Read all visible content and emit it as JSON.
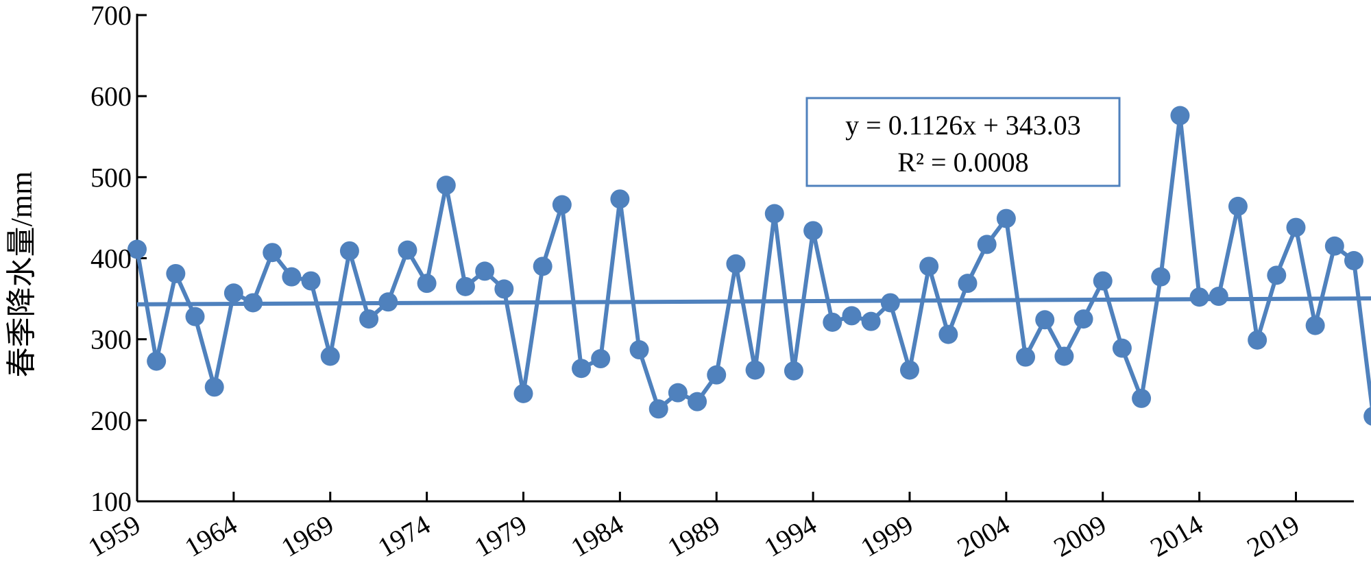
{
  "chart_data": {
    "type": "line",
    "title": "",
    "xlabel": "",
    "ylabel": "春季降水量/mm",
    "ylim": [
      100,
      700
    ],
    "xlim": [
      1959,
      2022
    ],
    "yticks": [
      100,
      200,
      300,
      400,
      500,
      600,
      700
    ],
    "xticks": [
      1959,
      1964,
      1969,
      1974,
      1979,
      1984,
      1989,
      1994,
      1999,
      2004,
      2009,
      2014,
      2019
    ],
    "color": "#4f81bd",
    "x": [
      1959,
      1960,
      1961,
      1962,
      1963,
      1964,
      1965,
      1966,
      1967,
      1968,
      1969,
      1970,
      1971,
      1972,
      1973,
      1974,
      1975,
      1976,
      1977,
      1978,
      1979,
      1980,
      1981,
      1982,
      1983,
      1984,
      1985,
      1986,
      1987,
      1988,
      1989,
      1990,
      1991,
      1992,
      1993,
      1994,
      1995,
      1996,
      1997,
      1998,
      1999,
      2000,
      2001,
      2002,
      2003,
      2004,
      2005,
      2006,
      2007,
      2008,
      2009,
      2010,
      2011,
      2012,
      2013,
      2014,
      2015,
      2016,
      2017,
      2018,
      2019,
      2020,
      2021,
      2022,
      2023
    ],
    "series": [
      {
        "values": [
          411,
          273,
          381,
          328,
          241,
          357,
          345,
          407,
          377,
          372,
          279,
          409,
          325,
          346,
          410,
          369,
          490,
          365,
          384,
          362,
          233,
          390,
          466,
          264,
          276,
          473,
          287,
          214,
          234,
          223,
          256,
          393,
          262,
          455,
          261,
          434,
          321,
          329,
          322,
          345,
          262,
          390,
          306,
          369,
          417,
          449,
          278,
          324,
          279,
          325,
          372,
          289,
          227,
          377,
          576,
          352,
          353,
          464,
          299,
          379,
          438,
          317,
          415,
          397,
          205
        ]
      }
    ],
    "trendline": {
      "slope": 0.1126,
      "intercept": 343.03,
      "start": 343.1,
      "end": 350.4
    },
    "annotation": {
      "equation": "y = 0.1126x + 343.03",
      "r_squared": "R² = 0.0008"
    },
    "grid": false,
    "legend": "none"
  }
}
